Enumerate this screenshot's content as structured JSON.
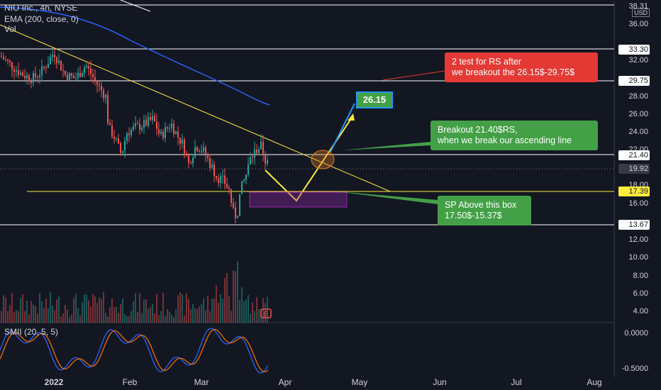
{
  "header": {
    "symbol_line": "NIO Inc., 4h, NYSE",
    "ema_line": "EMA (200, close, 0)",
    "vol_line": "Vol",
    "currency": "USD"
  },
  "price_axis": {
    "labels": [
      "36.00",
      "32.00",
      "28.00",
      "26.00",
      "24.00",
      "22.00",
      "18.00",
      "16.00",
      "12.00",
      "10.00",
      "8.00",
      "6.00",
      "4.00"
    ],
    "top_partial": "38.31"
  },
  "price_tags": [
    {
      "value": "33.30",
      "style": "white"
    },
    {
      "value": "29.75",
      "style": "white"
    },
    {
      "value": "21.40",
      "style": "white"
    },
    {
      "value": "19.92",
      "style": "gray"
    },
    {
      "value": "17.39",
      "style": "yellow"
    },
    {
      "value": "13.67",
      "style": "white"
    }
  ],
  "smii_axis": {
    "label": "SMII (20, 5, 5)",
    "ticks": [
      "0.0000",
      "-0.5000"
    ]
  },
  "time_axis": [
    "2022",
    "Feb",
    "Mar",
    "Apr",
    "May",
    "Jun",
    "Jul",
    "Aug"
  ],
  "annotations": {
    "red_note": [
      "2 test for RS after",
      "we breakout the 26.15$-29.75$"
    ],
    "target_badge": "26.15",
    "green_note_breakout": [
      "Breakout 21.40$RS,",
      "when we break our ascending line"
    ],
    "green_note_sp": [
      "SP Above this box",
      "17.50$-15.37$"
    ],
    "earnings_marker": "E"
  },
  "colors": {
    "background": "#131722",
    "up_candle": "#26a69a",
    "down_candle": "#ef5350",
    "ema": "#2962ff",
    "trend_line": "#ffeb3b",
    "box": "#9c27b0"
  }
}
